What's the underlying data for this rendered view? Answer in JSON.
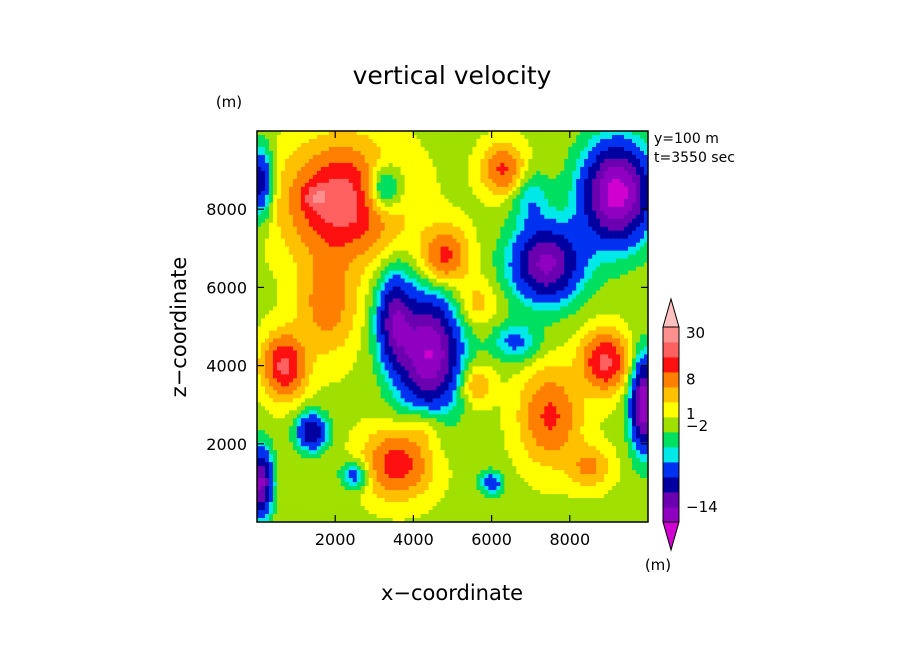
{
  "chart_data": {
    "type": "heatmap",
    "title": "vertical velocity",
    "unit_top": "(m)",
    "unit_colorbar": "(m)",
    "annotations": [
      "y=100 m",
      "t=3550 sec"
    ],
    "xlabel": "x−coordinate",
    "ylabel": "z−coordinate",
    "xlim": [
      0,
      10000
    ],
    "ylim": [
      0,
      10000
    ],
    "x_ticks": [
      2000,
      4000,
      6000,
      8000
    ],
    "y_ticks": [
      2000,
      4000,
      6000,
      8000
    ],
    "x_tick_labels": [
      "2000",
      "4000",
      "6000",
      "8000"
    ],
    "y_tick_labels": [
      "2000",
      "4000",
      "6000",
      "8000"
    ],
    "colorbar": {
      "colors": [
        "#d000d0",
        "#9000c0",
        "#6a00b0",
        "#0000a0",
        "#0030f0",
        "#00e8e8",
        "#00e060",
        "#a0e000",
        "#ffff00",
        "#ffc000",
        "#ff8000",
        "#ff1010",
        "#ff6060",
        "#ff9090",
        "#ffc0c0"
      ],
      "labels": [
        {
          "text": "30",
          "index": 13.6
        },
        {
          "text": "8",
          "index": 10.5
        },
        {
          "text": "1",
          "index": 8.2
        },
        {
          "text": "−2",
          "index": 7.4
        },
        {
          "text": "−14",
          "index": 2.0
        }
      ]
    },
    "field": {
      "base": 0.4,
      "features": [
        {
          "x": 2200,
          "z": 8200,
          "amp": 4.0,
          "sx": 1300,
          "sz": 1300
        },
        {
          "x": 1500,
          "z": 8300,
          "amp": 1.5,
          "sx": 300,
          "sz": 300
        },
        {
          "x": 700,
          "z": 4000,
          "amp": 3.5,
          "sx": 500,
          "sz": 750
        },
        {
          "x": 1800,
          "z": 5600,
          "amp": 1.8,
          "sx": 700,
          "sz": 1200
        },
        {
          "x": 4400,
          "z": 4300,
          "amp": -4.6,
          "sx": 800,
          "sz": 1500
        },
        {
          "x": 3500,
          "z": 5200,
          "amp": -3.0,
          "sx": 450,
          "sz": 1200
        },
        {
          "x": 3200,
          "z": 8500,
          "amp": -2.8,
          "sx": 500,
          "sz": 650
        },
        {
          "x": 7400,
          "z": 6600,
          "amp": -4.0,
          "sx": 900,
          "sz": 1000
        },
        {
          "x": 9200,
          "z": 8400,
          "amp": -5.0,
          "sx": 900,
          "sz": 1300
        },
        {
          "x": 8900,
          "z": 4100,
          "amp": 3.5,
          "sx": 550,
          "sz": 700
        },
        {
          "x": 4800,
          "z": 6800,
          "amp": 2.6,
          "sx": 550,
          "sz": 700
        },
        {
          "x": 6300,
          "z": 9000,
          "amp": 2.4,
          "sx": 500,
          "sz": 600
        },
        {
          "x": 3600,
          "z": 1500,
          "amp": 2.8,
          "sx": 800,
          "sz": 800
        },
        {
          "x": 7500,
          "z": 2700,
          "amp": 2.4,
          "sx": 700,
          "sz": 1100
        },
        {
          "x": 9900,
          "z": 3000,
          "amp": -4.5,
          "sx": 350,
          "sz": 1200
        },
        {
          "x": 100,
          "z": 1000,
          "amp": -4.0,
          "sx": 300,
          "sz": 900
        },
        {
          "x": 1400,
          "z": 2300,
          "amp": -3.0,
          "sx": 400,
          "sz": 500
        },
        {
          "x": 2500,
          "z": 1200,
          "amp": -2.0,
          "sx": 350,
          "sz": 350
        },
        {
          "x": 6000,
          "z": 1000,
          "amp": -2.0,
          "sx": 300,
          "sz": 300
        },
        {
          "x": 6600,
          "z": 4600,
          "amp": -1.6,
          "sx": 600,
          "sz": 500
        },
        {
          "x": 5600,
          "z": 3500,
          "amp": 1.4,
          "sx": 400,
          "sz": 500
        },
        {
          "x": 100,
          "z": 8700,
          "amp": -2.8,
          "sx": 300,
          "sz": 900
        },
        {
          "x": 5600,
          "z": 5600,
          "amp": 1.0,
          "sx": 500,
          "sz": 600
        },
        {
          "x": 8500,
          "z": 1400,
          "amp": 1.5,
          "sx": 500,
          "sz": 500
        },
        {
          "x": 4300,
          "z": 2500,
          "amp": 1.0,
          "sx": 500,
          "sz": 500
        },
        {
          "x": 7000,
          "z": 8300,
          "amp": -1.2,
          "sx": 500,
          "sz": 700
        }
      ]
    }
  }
}
